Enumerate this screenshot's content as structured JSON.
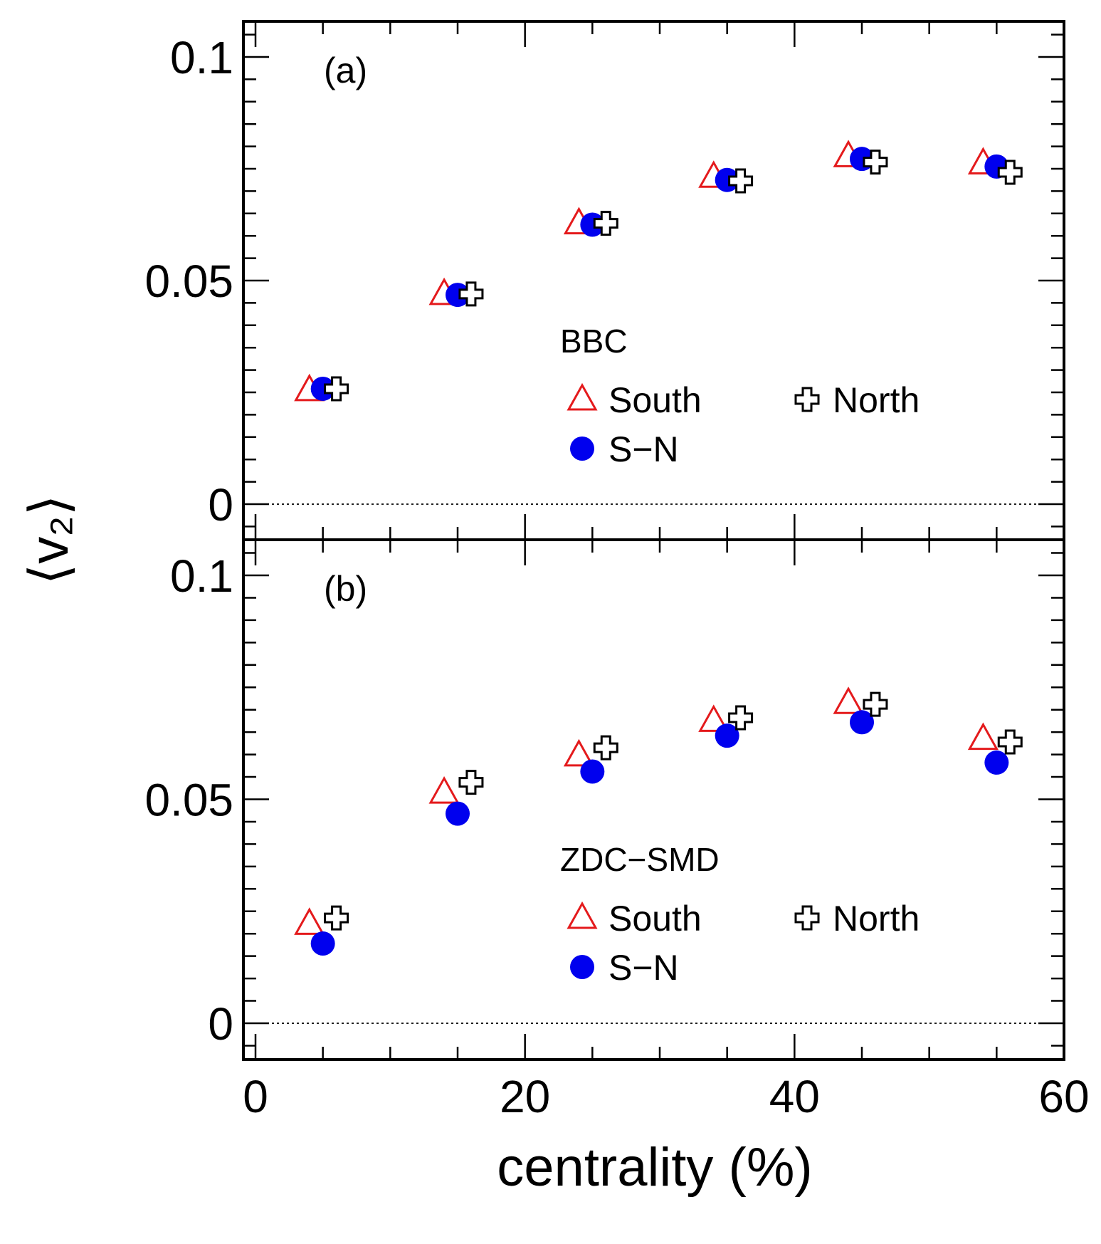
{
  "chart_data": [
    {
      "type": "scatter",
      "panel_label": "(a)",
      "legend_title": "BBC",
      "xlabel": "centrality (%)",
      "ylabel": "⟨v₂⟩",
      "xlim": [
        -1.5,
        59.5
      ],
      "ylim": [
        -0.008,
        0.108
      ],
      "x_ticks": [
        "0",
        "20",
        "40",
        "60"
      ],
      "y_ticks": [
        "0",
        "0.05",
        "0.1"
      ],
      "reference_line": 0,
      "legend_placement": "center-right",
      "series": [
        {
          "name": "South",
          "marker": "open-triangle",
          "color": "#e41a1c",
          "x": [
            4,
            14,
            24,
            34,
            44,
            54
          ],
          "y": [
            0.0255,
            0.047,
            0.0628,
            0.0732,
            0.0778,
            0.0762
          ]
        },
        {
          "name": "S−N",
          "marker": "filled-circle",
          "color": "#0000ee",
          "x": [
            5,
            15,
            25,
            35,
            45,
            55
          ],
          "y": [
            0.0258,
            0.0468,
            0.0625,
            0.0725,
            0.0772,
            0.0755
          ]
        },
        {
          "name": "North",
          "marker": "open-cross",
          "color": "#000000",
          "x": [
            6,
            16,
            26,
            36,
            46,
            56
          ],
          "y": [
            0.0258,
            0.047,
            0.0628,
            0.0723,
            0.0765,
            0.0742
          ]
        }
      ]
    },
    {
      "type": "scatter",
      "panel_label": "(b)",
      "legend_title": "ZDC−SMD",
      "xlabel": "centrality (%)",
      "ylabel": "⟨v₂⟩",
      "xlim": [
        -1.5,
        59.5
      ],
      "ylim": [
        -0.008,
        0.108
      ],
      "x_ticks": [
        "0",
        "20",
        "40",
        "60"
      ],
      "y_ticks": [
        "0",
        "0.05",
        "0.1"
      ],
      "reference_line": 0,
      "legend_placement": "center-right",
      "series": [
        {
          "name": "South",
          "marker": "open-triangle",
          "color": "#e41a1c",
          "x": [
            4,
            14,
            24,
            34,
            44,
            54
          ],
          "y": [
            0.0222,
            0.0515,
            0.0598,
            0.0675,
            0.0715,
            0.0635
          ]
        },
        {
          "name": "S−N",
          "marker": "filled-circle",
          "color": "#0000ee",
          "x": [
            5,
            15,
            25,
            35,
            45,
            55
          ],
          "y": [
            0.0178,
            0.0468,
            0.0562,
            0.0642,
            0.0672,
            0.0582
          ]
        },
        {
          "name": "North",
          "marker": "open-cross",
          "color": "#000000",
          "x": [
            6,
            16,
            26,
            36,
            46,
            56
          ],
          "y": [
            0.0235,
            0.0538,
            0.0615,
            0.0682,
            0.0712,
            0.0628
          ]
        }
      ]
    }
  ]
}
